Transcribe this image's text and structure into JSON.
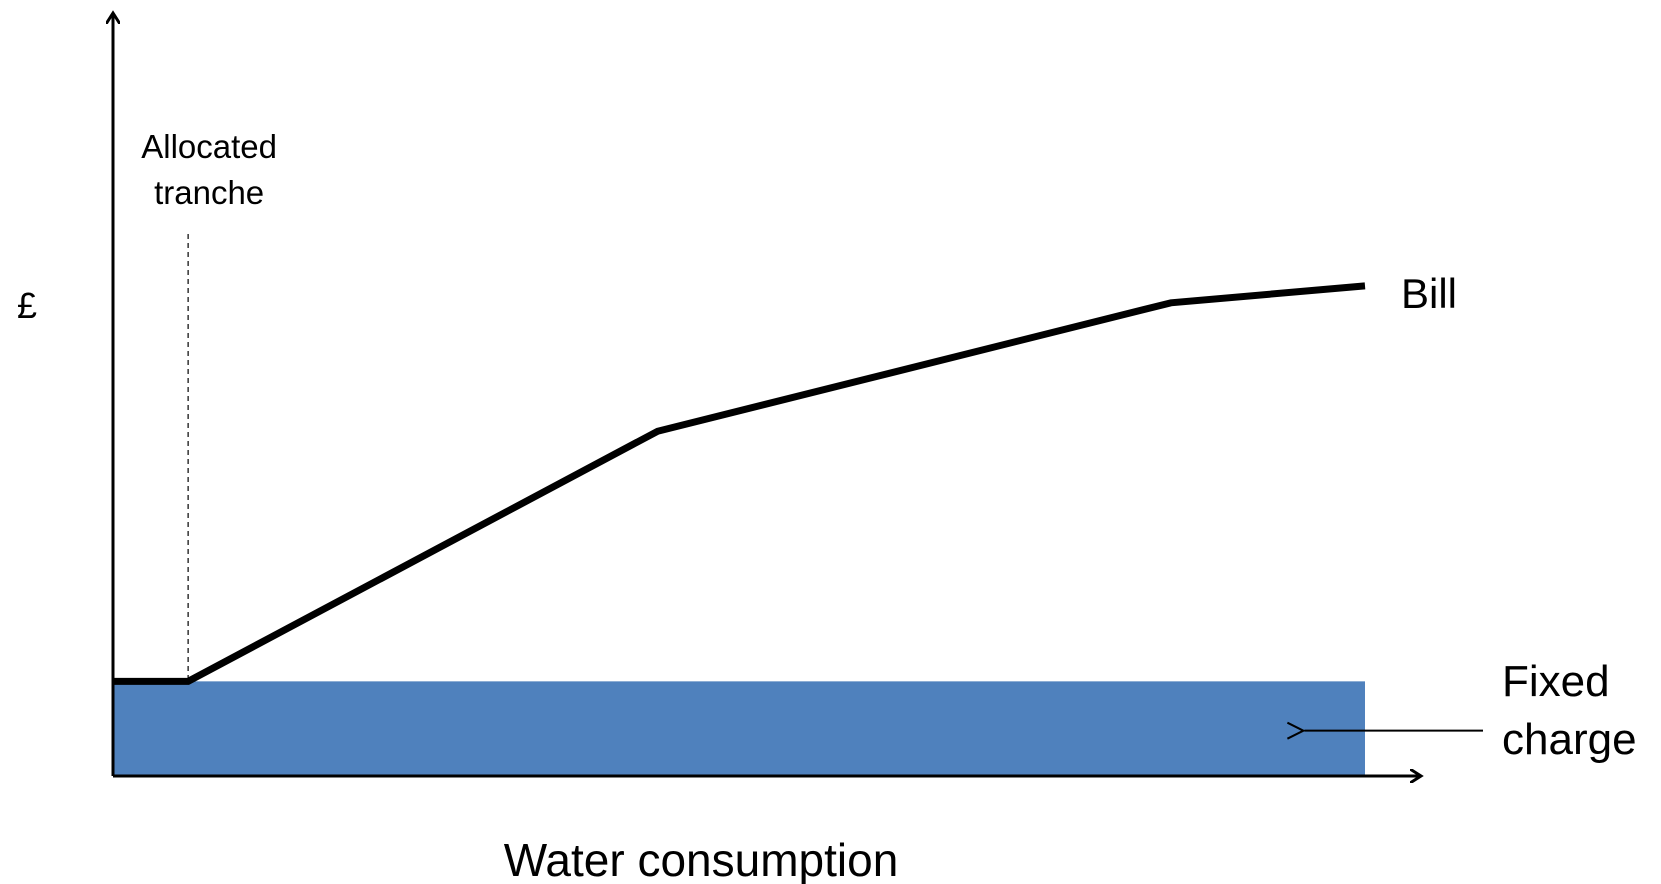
{
  "chart_data": {
    "type": "line",
    "title": "",
    "xlabel": "Water consumption",
    "ylabel": "£",
    "xlim": [
      0,
      100
    ],
    "ylim": [
      0,
      100
    ],
    "grid": false,
    "series": [
      {
        "name": "Bill",
        "x": [
          0,
          6,
          43.5,
          84.5,
          100
        ],
        "y": [
          14,
          14,
          51,
          70,
          72.5
        ]
      }
    ],
    "fixed_charge": {
      "label_line1": "Fixed",
      "label_line2": "charge",
      "x_range": [
        0,
        100
      ],
      "value": 14,
      "arrow_x": 95
    },
    "allocated_tranche": {
      "label_line1": "Allocated",
      "label_line2": "tranche",
      "x": 6
    },
    "colors": {
      "fixed_charge_fill": "#4f81bd",
      "line": "#000000"
    }
  }
}
